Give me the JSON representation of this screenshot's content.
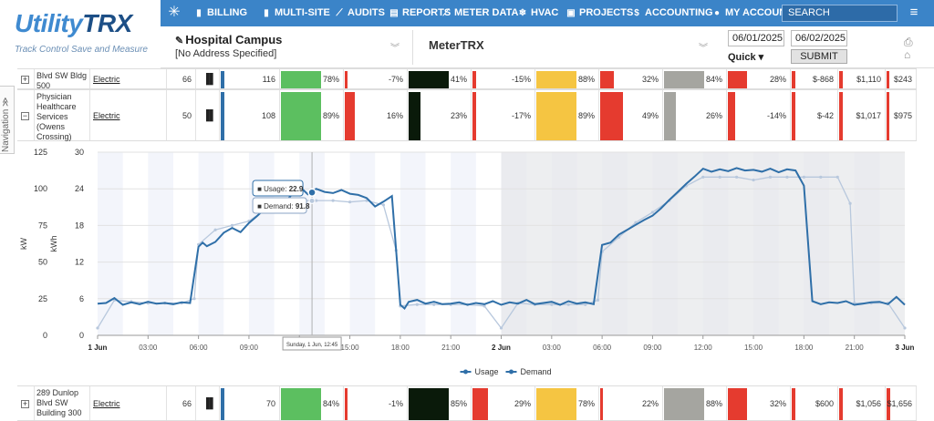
{
  "logo": {
    "word1": "Utility",
    "word2": "TRX",
    "tagline": "Track Control Save and Measure"
  },
  "nav": {
    "items": [
      {
        "label": "BILLING",
        "icon": "bar-chart-icon",
        "glyph": "▮"
      },
      {
        "label": "MULTI-SITE",
        "icon": "bar-chart-icon",
        "glyph": "▮"
      },
      {
        "label": "AUDITS",
        "icon": "line-chart-icon",
        "glyph": "⟋"
      },
      {
        "label": "REPORTS",
        "icon": "document-icon",
        "glyph": "▤"
      },
      {
        "label": "METER DATA",
        "icon": "line-chart-icon",
        "glyph": "⟋"
      },
      {
        "label": "HVAC",
        "icon": "snowflake-icon",
        "glyph": "❄"
      },
      {
        "label": "PROJECTS",
        "icon": "clipboard-icon",
        "glyph": "▣"
      },
      {
        "label": "ACCOUNTING",
        "icon": "dollar-icon",
        "glyph": "$"
      },
      {
        "label": "MY ACCOUNT",
        "icon": "user-icon",
        "glyph": "●"
      }
    ],
    "search_label": "SEARCH"
  },
  "subbar": {
    "site_name": "Hospital Campus",
    "site_address": "[No Address Specified]",
    "meter_name": "MeterTRX",
    "start_date": "06/01/2025",
    "end_date": "06/02/2025",
    "quick_label": "Quick ▾",
    "submit_label": "SUBMIT"
  },
  "navigation_tab": "Navigation ≫",
  "rows": [
    {
      "building": "Blvd SW Bldg 500",
      "type": "Electric",
      "count": "66",
      "value": "116",
      "metrics": [
        {
          "label": "78%",
          "color": "#5cbf60",
          "bar": 1.0,
          "bar_color": "#5cbf60"
        },
        {
          "label": "-7%",
          "color": "#e53b2f",
          "bar": 0.05
        },
        {
          "label": "41%",
          "color": "#0a1a0a",
          "bar": 1.0,
          "bar_color": "#0a1a0a"
        },
        {
          "label": "-15%",
          "color": "#e53b2f",
          "bar": 0.1
        },
        {
          "label": "88%",
          "color": "#f5c542",
          "bar": 1.0,
          "bar_color": "#f5c542"
        },
        {
          "label": "32%",
          "color": "#e53b2f",
          "bar": 0.4
        },
        {
          "label": "84%",
          "color": "#a5a5a0",
          "bar": 1.0,
          "bar_color": "#a5a5a0"
        },
        {
          "label": "28%",
          "color": "#e53b2f",
          "bar": 0.55
        },
        {
          "label": "$-868",
          "color": "#e53b2f",
          "bar": 0.1
        },
        {
          "label": "$1,110",
          "color": "#e53b2f",
          "bar": 0.1
        },
        {
          "label": "$243",
          "color": "#e53b2f",
          "bar": 0.05
        }
      ]
    },
    {
      "building": "Physician Healthcare Services (Owens Crossing)",
      "type": "Electric",
      "count": "50",
      "value": "108",
      "metrics": [
        {
          "label": "89%",
          "color": "#5cbf60",
          "bar": 1.0
        },
        {
          "label": "16%",
          "color": "#e53b2f",
          "bar": 0.3
        },
        {
          "label": "23%",
          "color": "#0a1a0a",
          "bar": 0.3
        },
        {
          "label": "-17%",
          "color": "#e53b2f",
          "bar": 0.1
        },
        {
          "label": "89%",
          "color": "#f5c542",
          "bar": 1.0
        },
        {
          "label": "49%",
          "color": "#e53b2f",
          "bar": 0.65
        },
        {
          "label": "26%",
          "color": "#a5a5a0",
          "bar": 0.3
        },
        {
          "label": "-14%",
          "color": "#e53b2f",
          "bar": 0.2
        },
        {
          "label": "$-42",
          "color": "#e53b2f",
          "bar": 0.1
        },
        {
          "label": "$1,017",
          "color": "#e53b2f",
          "bar": 0.1
        },
        {
          "label": "$975",
          "color": "#e53b2f",
          "bar": 0.05
        }
      ]
    },
    {
      "building": "289 Dunlop Blvd SW Building 300",
      "type": "Electric",
      "count": "66",
      "value": "70",
      "metrics": [
        {
          "label": "84%",
          "color": "#5cbf60",
          "bar": 1.0
        },
        {
          "label": "-1%",
          "color": "#e53b2f",
          "bar": 0.03
        },
        {
          "label": "85%",
          "color": "#0a1a0a",
          "bar": 1.0
        },
        {
          "label": "29%",
          "color": "#e53b2f",
          "bar": 0.45
        },
        {
          "label": "78%",
          "color": "#f5c542",
          "bar": 1.0
        },
        {
          "label": "22%",
          "color": "#e53b2f",
          "bar": 0.05
        },
        {
          "label": "88%",
          "color": "#a5a5a0",
          "bar": 1.0
        },
        {
          "label": "32%",
          "color": "#e53b2f",
          "bar": 0.55
        },
        {
          "label": "$600",
          "color": "#e53b2f",
          "bar": 0.1
        },
        {
          "label": "$1,056",
          "color": "#e53b2f",
          "bar": 0.1
        },
        {
          "label": "$1,656",
          "color": "#e53b2f",
          "bar": 0.1
        }
      ]
    }
  ],
  "chart_data": {
    "type": "line",
    "y_left_label": "kW",
    "y_right_label": "kWh",
    "y_left_ticks": [
      0,
      25,
      50,
      75,
      100,
      125
    ],
    "y_right_ticks": [
      0,
      6,
      12,
      18,
      24,
      30
    ],
    "y_left_range": [
      0,
      125
    ],
    "y_right_range": [
      0,
      30
    ],
    "x_ticks": [
      "1 Jun",
      "03:00",
      "06:00",
      "09:00",
      "12:00",
      "15:00",
      "18:00",
      "21:00",
      "2 Jun",
      "03:00",
      "06:00",
      "09:00",
      "12:00",
      "15:00",
      "18:00",
      "21:00",
      "3 Jun"
    ],
    "x_range_hours": [
      0,
      48
    ],
    "weekend_band_start_hour": 24,
    "series": [
      {
        "name": "Usage",
        "axis": "kWh",
        "color": "#2f6fa8",
        "x_hours": [
          0,
          0.5,
          1,
          1.5,
          2,
          2.5,
          3,
          3.5,
          4,
          4.5,
          5,
          5.5,
          6,
          6.25,
          6.5,
          7,
          7.5,
          8,
          8.5,
          9,
          9.5,
          10,
          10.5,
          11,
          11.5,
          12,
          12.5,
          13,
          13.5,
          14,
          14.5,
          15,
          15.5,
          16,
          16.5,
          17,
          17.5,
          18,
          18.25,
          18.5,
          19,
          19.5,
          20,
          20.5,
          21,
          21.5,
          22,
          22.5,
          23,
          23.5,
          24,
          24.5,
          25,
          25.5,
          26,
          26.5,
          27,
          27.5,
          28,
          28.5,
          29,
          29.5,
          30,
          30.5,
          31,
          31.5,
          32,
          32.5,
          33,
          33.5,
          34,
          34.5,
          35,
          35.5,
          36,
          36.5,
          37,
          37.5,
          38,
          38.5,
          39,
          39.5,
          40,
          40.5,
          41,
          41.5,
          42,
          42.5,
          43,
          43.5,
          44,
          44.5,
          45,
          45.5,
          46,
          46.5,
          47,
          47.5,
          48
        ],
        "values": [
          5.2,
          5.3,
          6.1,
          5.0,
          5.4,
          5.1,
          5.5,
          5.2,
          5.3,
          5.1,
          5.4,
          5.3,
          14.5,
          15.2,
          14.6,
          15.3,
          16.8,
          17.6,
          16.9,
          18.4,
          19.6,
          20.9,
          22.1,
          21.3,
          22.9,
          24.4,
          23.1,
          24.0,
          23.5,
          23.3,
          23.8,
          23.2,
          23.0,
          22.5,
          21.1,
          21.9,
          22.8,
          5.0,
          4.4,
          5.5,
          5.8,
          5.2,
          5.5,
          5.1,
          5.2,
          5.4,
          5.0,
          5.3,
          5.1,
          5.6,
          5.0,
          5.4,
          5.2,
          5.8,
          5.1,
          5.3,
          5.5,
          5.0,
          5.6,
          5.2,
          5.4,
          5.1,
          14.8,
          15.2,
          16.5,
          17.3,
          18.1,
          18.9,
          19.6,
          20.8,
          22.2,
          23.5,
          24.8,
          26.0,
          27.3,
          26.8,
          27.2,
          26.9,
          27.4,
          27.0,
          27.1,
          26.8,
          27.3,
          26.7,
          27.2,
          27.0,
          24.5,
          5.6,
          5.1,
          5.4,
          5.3,
          5.6,
          5.0,
          5.2,
          5.4,
          5.5,
          5.1,
          6.3,
          5.0
        ],
        "tooltip_value": "22.9"
      },
      {
        "name": "Demand",
        "axis": "kW",
        "color": "#b8c8dd",
        "x_hours": [
          0,
          1,
          2,
          3,
          4,
          5,
          5.75,
          6,
          7,
          8,
          9,
          10,
          11,
          12,
          13,
          14,
          15,
          16,
          17,
          17.75,
          18,
          19,
          20,
          21,
          22,
          23,
          24,
          25,
          26,
          27,
          28,
          29,
          29.75,
          30,
          31,
          32,
          33,
          34,
          35,
          36,
          37,
          38,
          39,
          40,
          41,
          42,
          43,
          44,
          44.75,
          45,
          46,
          47,
          48
        ],
        "values": [
          5,
          24,
          23,
          22,
          22,
          22,
          25,
          62,
          72,
          75,
          78,
          86,
          90,
          92,
          92,
          92,
          91,
          92,
          89,
          58,
          20,
          21,
          21,
          21,
          21,
          20,
          5,
          22,
          21,
          21,
          21,
          21,
          24,
          57,
          67,
          77,
          84,
          92,
          102,
          108,
          108,
          108,
          106,
          108,
          108,
          108,
          108,
          108,
          90,
          22,
          22,
          22,
          5
        ],
        "tooltip_value": "91.8"
      }
    ],
    "tooltip_usage_label": "Usage: ",
    "tooltip_demand_label": "Demand: ",
    "crosshair_label": "Sunday, 1 Jun, 12:45",
    "crosshair_hour": 12.75,
    "legend": [
      "Usage",
      "Demand"
    ],
    "legend_position": "bottom-center"
  }
}
